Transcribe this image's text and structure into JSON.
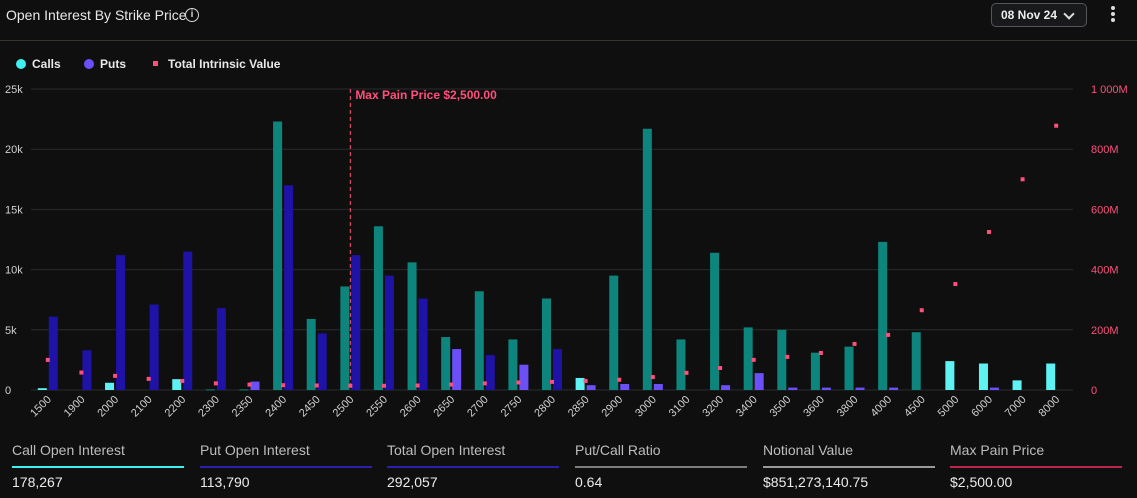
{
  "header": {
    "title": "Open Interest By Strike Price",
    "info_icon": "info-icon",
    "date_selected": "08 Nov 24",
    "more_icon": "more-vertical-icon"
  },
  "legend": {
    "items": [
      {
        "label": "Calls",
        "color": "#3ff0f0",
        "marker": "dot"
      },
      {
        "label": "Puts",
        "color": "#6a4fff",
        "marker": "dot"
      },
      {
        "label": "Total Intrinsic Value",
        "color": "#ff4f7a",
        "marker": "square"
      }
    ]
  },
  "colors": {
    "calls_light": "#5ef2f2",
    "calls_dark": "#0d857c",
    "puts_light": "#6b4ff7",
    "puts_dark": "#1f12a6",
    "intrinsic": "#ff4f7a",
    "grid": "#2a2b2d",
    "axis_text": "#d0d0d0",
    "right_axis_text": "#ff4f7a",
    "max_pain": "#ff4f7a"
  },
  "chart_data": {
    "type": "bar",
    "title": "Open Interest By Strike Price",
    "categories": [
      "1500",
      "1900",
      "2000",
      "2100",
      "2200",
      "2300",
      "2350",
      "2400",
      "2450",
      "2500",
      "2550",
      "2600",
      "2650",
      "2700",
      "2750",
      "2800",
      "2850",
      "2900",
      "3000",
      "3100",
      "3200",
      "3400",
      "3500",
      "3600",
      "3800",
      "4000",
      "4500",
      "5000",
      "6000",
      "7000",
      "8000"
    ],
    "series": [
      {
        "name": "Calls",
        "axis": "left",
        "values": [
          150,
          0,
          600,
          0,
          900,
          50,
          50,
          22300,
          5900,
          8600,
          13600,
          10600,
          4400,
          8200,
          4200,
          7600,
          1000,
          9500,
          21700,
          4200,
          11400,
          5200,
          5000,
          3100,
          3600,
          12300,
          4800,
          2400,
          2200,
          800,
          2200
        ]
      },
      {
        "name": "Puts",
        "axis": "left",
        "values": [
          6100,
          3300,
          11200,
          7100,
          11500,
          6800,
          700,
          17000,
          4700,
          11200,
          9500,
          7600,
          3400,
          2900,
          2100,
          3400,
          400,
          500,
          500,
          0,
          400,
          1400,
          200,
          200,
          200,
          200,
          0,
          0,
          200,
          0,
          0
        ]
      },
      {
        "name": "Total Intrinsic Value",
        "axis": "right",
        "type": "scatter",
        "values": [
          100000000,
          58000000,
          47000000,
          37000000,
          30000000,
          22000000,
          18000000,
          16000000,
          15000000,
          14000000,
          14000000,
          15000000,
          18000000,
          22000000,
          25000000,
          27000000,
          30000000,
          34000000,
          43000000,
          57000000,
          73000000,
          100000000,
          110000000,
          123000000,
          153000000,
          183000000,
          265000000,
          352000000,
          525000000,
          700000000,
          878000000
        ]
      }
    ],
    "highlight": {
      "calls_light": [
        "1500",
        "2000",
        "2200",
        "2850",
        "5000",
        "6000",
        "7000",
        "8000"
      ],
      "puts_light": [
        "2350",
        "2650",
        "2750",
        "2850",
        "2900",
        "3000",
        "3200",
        "3400",
        "3500",
        "3600",
        "3800",
        "4000",
        "6000"
      ]
    },
    "max_pain": {
      "strike": "2500",
      "label": "Max Pain Price $2,500.00"
    },
    "y_left": {
      "min": 0,
      "max": 25000,
      "ticks": [
        0,
        5000,
        10000,
        15000,
        20000,
        25000
      ],
      "tick_labels": [
        "0",
        "5k",
        "10k",
        "15k",
        "20k",
        "25k"
      ]
    },
    "y_right": {
      "min": 0,
      "max": 1000000000,
      "ticks": [
        0,
        200000000,
        400000000,
        600000000,
        800000000,
        1000000000
      ],
      "tick_labels": [
        "0",
        "200M",
        "400M",
        "600M",
        "800M",
        "1 000M"
      ]
    },
    "grid": true,
    "legend_position": "top-left"
  },
  "stats": [
    {
      "label": "Call Open Interest",
      "value": "178,267",
      "color": "#3ff0f0"
    },
    {
      "label": "Put Open Interest",
      "value": "113,790",
      "color": "#2a1fb0"
    },
    {
      "label": "Total Open Interest",
      "value": "292,057",
      "color": "#2a1fb0"
    },
    {
      "label": "Put/Call Ratio",
      "value": "0.64",
      "color": "#7d7d7d"
    },
    {
      "label": "Notional Value",
      "value": "$851,273,140.75",
      "color": "#9a9a9a"
    },
    {
      "label": "Max Pain Price",
      "value": "$2,500.00",
      "color": "#c0234e"
    }
  ]
}
